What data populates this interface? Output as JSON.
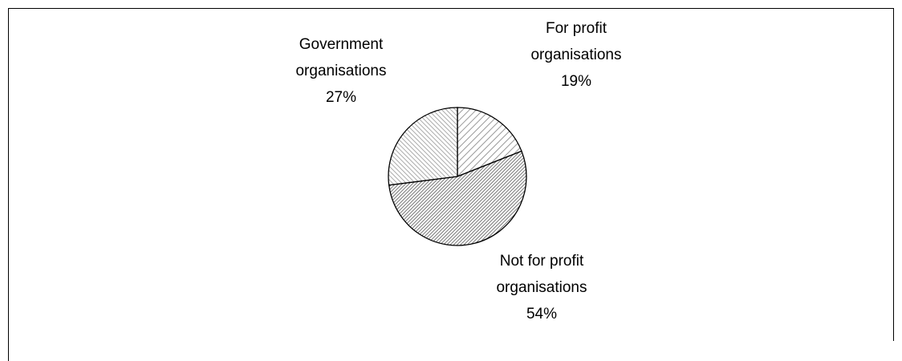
{
  "chart_data": {
    "type": "pie",
    "categories": [
      "For profit organisations",
      "Not for profit organisations",
      "Government organisations"
    ],
    "values": [
      19,
      54,
      27
    ],
    "value_labels": [
      "19%",
      "54%",
      "27%"
    ],
    "colors": [
      "#999999",
      "#777777",
      "#aaaaaa"
    ]
  }
}
